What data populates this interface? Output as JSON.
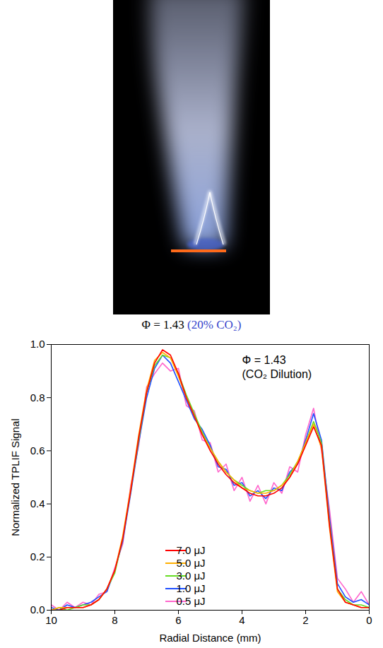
{
  "chart_data": {
    "type": "line",
    "caption": [
      "Φ = 1.43",
      "(20% CO₂)"
    ],
    "annotations": [
      "Φ = 1.43",
      "(CO₂ Dilution)"
    ],
    "xlabel": "Radial Distance (mm)",
    "ylabel": "Normalized TPLIF Signal",
    "xlim": [
      10,
      0
    ],
    "ylim": [
      0,
      1
    ],
    "xticks": [
      10,
      8,
      6,
      4,
      2,
      0
    ],
    "yticks": [
      {
        "value": 0,
        "label": "0.0"
      },
      0.2,
      0.4,
      0.6,
      0.8,
      {
        "value": 1,
        "label": "1.0"
      }
    ],
    "grid": false,
    "legend": "lower center",
    "x": [
      10,
      9.75,
      9.5,
      9.25,
      9,
      8.75,
      8.5,
      8.25,
      8,
      7.75,
      7.5,
      7.25,
      7,
      6.75,
      6.5,
      6.25,
      6,
      5.75,
      5.5,
      5.25,
      5,
      4.75,
      4.5,
      4.25,
      4,
      3.75,
      3.5,
      3.25,
      3,
      2.75,
      2.5,
      2.25,
      2,
      1.75,
      1.5,
      1.25,
      1,
      0.75,
      0.5,
      0.25,
      0
    ],
    "series": [
      {
        "name": "7.0 μJ",
        "color": "#ff0000",
        "values": [
          0.0,
          0.0,
          0.01,
          0.01,
          0.01,
          0.02,
          0.04,
          0.08,
          0.15,
          0.27,
          0.45,
          0.65,
          0.82,
          0.93,
          0.98,
          0.96,
          0.89,
          0.8,
          0.73,
          0.66,
          0.6,
          0.55,
          0.51,
          0.48,
          0.46,
          0.44,
          0.43,
          0.43,
          0.44,
          0.46,
          0.5,
          0.55,
          0.62,
          0.69,
          0.62,
          0.32,
          0.08,
          0.03,
          0.02,
          0.01,
          0.01
        ]
      },
      {
        "name": "5.0 μJ",
        "color": "#ffb000",
        "values": [
          0.0,
          0.01,
          0.01,
          0.01,
          0.01,
          0.02,
          0.04,
          0.08,
          0.15,
          0.28,
          0.46,
          0.66,
          0.83,
          0.94,
          0.97,
          0.95,
          0.88,
          0.8,
          0.73,
          0.66,
          0.61,
          0.56,
          0.52,
          0.49,
          0.46,
          0.45,
          0.44,
          0.44,
          0.45,
          0.47,
          0.5,
          0.56,
          0.63,
          0.7,
          0.61,
          0.31,
          0.07,
          0.03,
          0.02,
          0.01,
          0.01
        ]
      },
      {
        "name": "3.0 μJ",
        "color": "#66dd22",
        "values": [
          0.0,
          0.01,
          0.0,
          0.01,
          0.02,
          0.02,
          0.04,
          0.08,
          0.14,
          0.27,
          0.45,
          0.64,
          0.82,
          0.92,
          0.96,
          0.95,
          0.89,
          0.81,
          0.74,
          0.67,
          0.61,
          0.56,
          0.52,
          0.49,
          0.47,
          0.45,
          0.44,
          0.45,
          0.45,
          0.47,
          0.51,
          0.56,
          0.63,
          0.71,
          0.63,
          0.33,
          0.08,
          0.04,
          0.02,
          0.02,
          0.01
        ]
      },
      {
        "name": "1.0 μJ",
        "color": "#1f4fff",
        "values": [
          0.01,
          0.0,
          0.02,
          0.01,
          0.02,
          0.03,
          0.05,
          0.07,
          0.15,
          0.26,
          0.44,
          0.63,
          0.8,
          0.91,
          0.96,
          0.93,
          0.86,
          0.79,
          0.72,
          0.68,
          0.62,
          0.54,
          0.53,
          0.47,
          0.48,
          0.43,
          0.45,
          0.42,
          0.46,
          0.45,
          0.52,
          0.55,
          0.64,
          0.74,
          0.64,
          0.35,
          0.1,
          0.05,
          0.03,
          0.04,
          0.02
        ]
      },
      {
        "name": "0.5 μJ",
        "color": "#ff66cc",
        "values": [
          0.02,
          0.0,
          0.03,
          0.01,
          0.03,
          0.02,
          0.06,
          0.07,
          0.16,
          0.25,
          0.47,
          0.62,
          0.84,
          0.89,
          0.93,
          0.9,
          0.91,
          0.77,
          0.75,
          0.64,
          0.63,
          0.52,
          0.55,
          0.45,
          0.5,
          0.41,
          0.47,
          0.4,
          0.48,
          0.44,
          0.54,
          0.52,
          0.66,
          0.76,
          0.6,
          0.38,
          0.12,
          0.08,
          0.03,
          0.07,
          0.02
        ]
      }
    ]
  }
}
